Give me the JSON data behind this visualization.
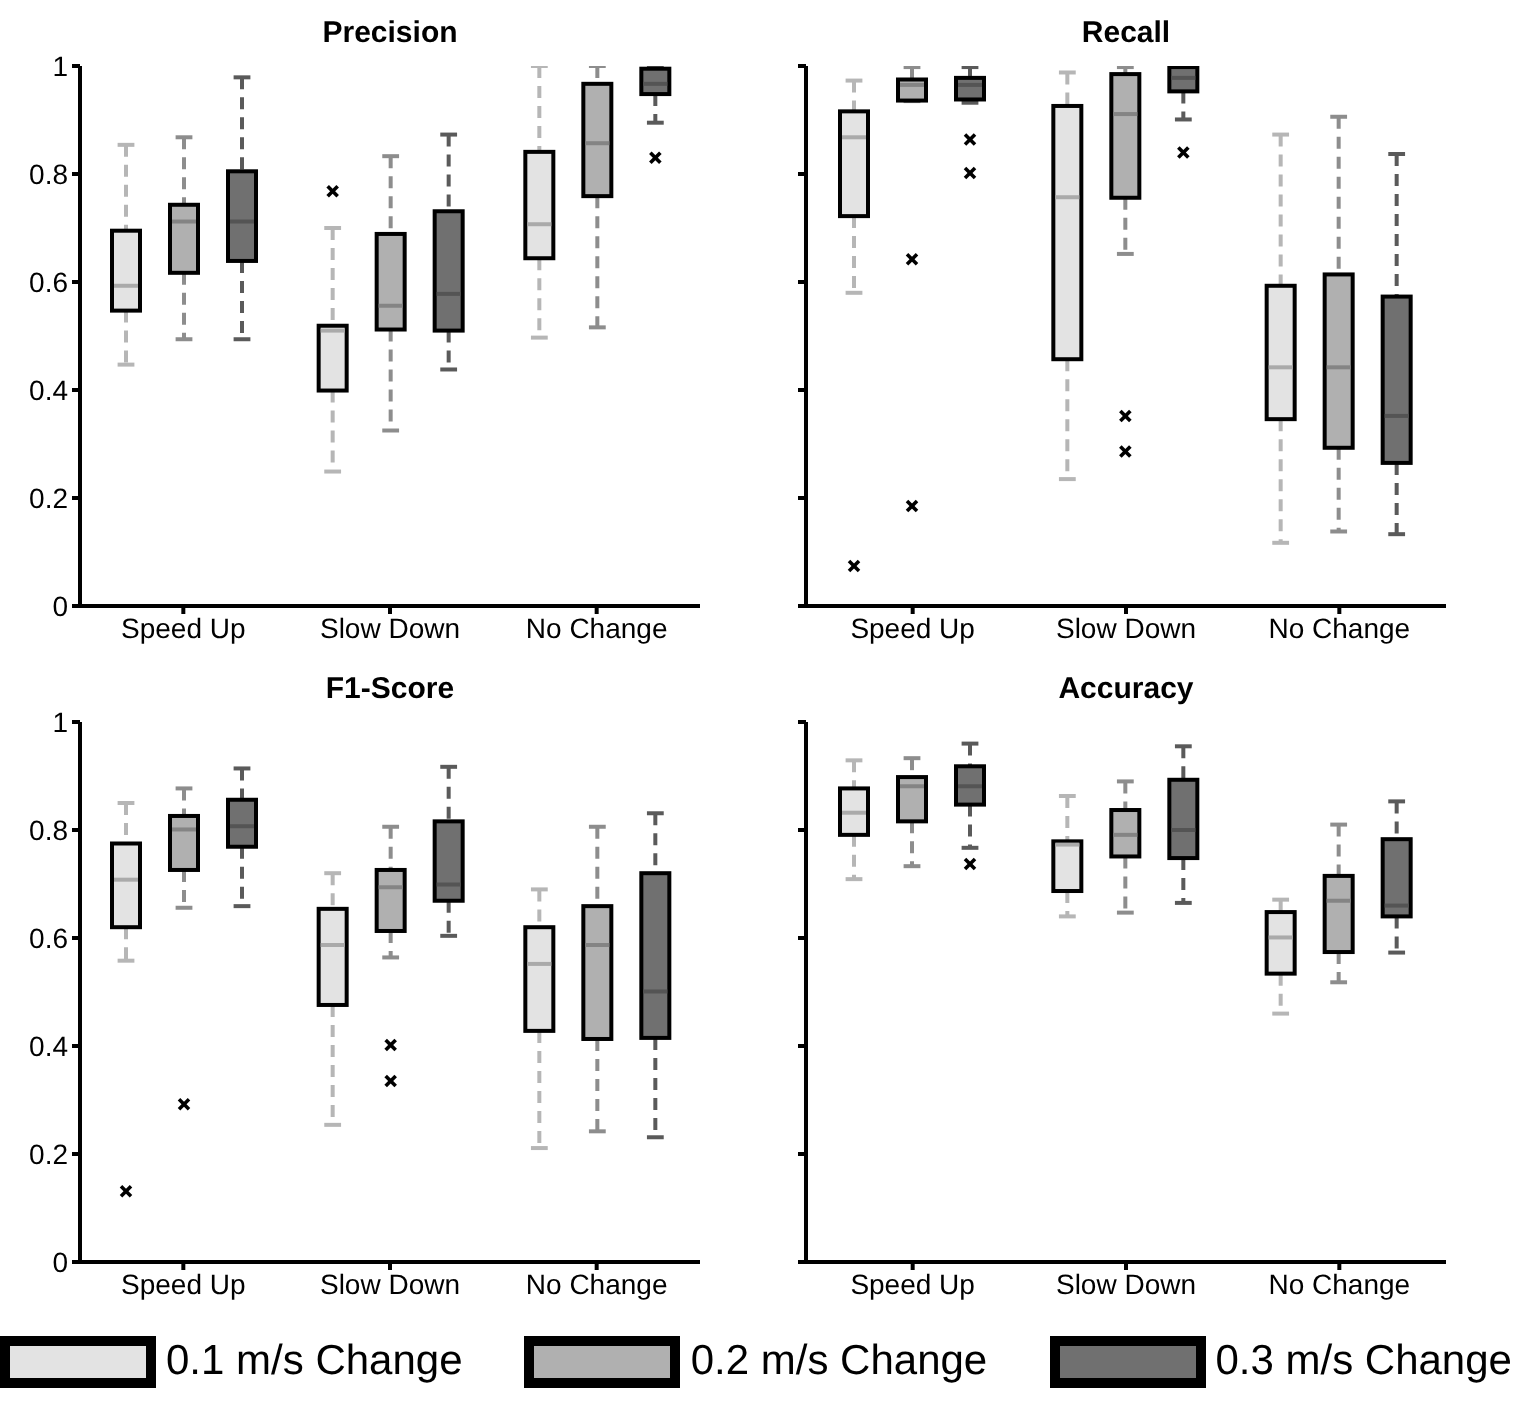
{
  "chart_data": [
    {
      "type": "box",
      "title": "Precision",
      "categories": [
        "Speed Up",
        "Slow Down",
        "No Change"
      ],
      "ylim": [
        0,
        1
      ],
      "yticks": [
        0,
        0.2,
        0.4,
        0.6,
        0.8,
        1
      ],
      "series": [
        {
          "color": "#e3e3e3",
          "boxes": [
            {
              "low": 0.447,
              "q1": 0.547,
              "median": 0.593,
              "q3": 0.695,
              "high": 0.854
            },
            {
              "low": 0.249,
              "q1": 0.399,
              "median": 0.51,
              "q3": 0.519,
              "high": 0.7,
              "outliers": [
                0.768
              ]
            },
            {
              "low": 0.497,
              "q1": 0.644,
              "median": 0.707,
              "q3": 0.841,
              "high": 1.0
            }
          ]
        },
        {
          "color": "#b0b0b0",
          "boxes": [
            {
              "low": 0.494,
              "q1": 0.617,
              "median": 0.712,
              "q3": 0.743,
              "high": 0.868
            },
            {
              "low": 0.325,
              "q1": 0.512,
              "median": 0.556,
              "q3": 0.689,
              "high": 0.833
            },
            {
              "low": 0.516,
              "q1": 0.759,
              "median": 0.857,
              "q3": 0.967,
              "high": 1.0
            }
          ]
        },
        {
          "color": "#707070",
          "boxes": [
            {
              "low": 0.494,
              "q1": 0.639,
              "median": 0.712,
              "q3": 0.805,
              "high": 0.979
            },
            {
              "low": 0.438,
              "q1": 0.51,
              "median": 0.578,
              "q3": 0.731,
              "high": 0.873
            },
            {
              "low": 0.895,
              "q1": 0.948,
              "median": 0.967,
              "q3": 0.995,
              "high": 1.0,
              "outliers": [
                0.83
              ]
            }
          ]
        }
      ]
    },
    {
      "type": "box",
      "title": "Recall",
      "categories": [
        "Speed Up",
        "Slow Down",
        "No Change"
      ],
      "ylim": [
        0,
        1
      ],
      "yticks": [
        0,
        0.2,
        0.4,
        0.6,
        0.8,
        1
      ],
      "tick_labels": "x",
      "series": [
        {
          "color": "#e3e3e3",
          "boxes": [
            {
              "low": 0.58,
              "q1": 0.722,
              "median": 0.868,
              "q3": 0.916,
              "high": 0.973,
              "outliers": [
                0.074
              ]
            },
            {
              "low": 0.235,
              "q1": 0.457,
              "median": 0.757,
              "q3": 0.926,
              "high": 0.988
            },
            {
              "low": 0.117,
              "q1": 0.346,
              "median": 0.442,
              "q3": 0.593,
              "high": 0.873
            }
          ]
        },
        {
          "color": "#b0b0b0",
          "boxes": [
            {
              "low": 0.935,
              "q1": 0.936,
              "median": 0.965,
              "q3": 0.975,
              "high": 0.998,
              "outliers": [
                0.642,
                0.185
              ]
            },
            {
              "low": 0.652,
              "q1": 0.756,
              "median": 0.911,
              "q3": 0.985,
              "high": 0.998,
              "outliers": [
                0.352,
                0.286
              ]
            },
            {
              "low": 0.138,
              "q1": 0.293,
              "median": 0.442,
              "q3": 0.614,
              "high": 0.906
            }
          ]
        },
        {
          "color": "#707070",
          "boxes": [
            {
              "low": 0.932,
              "q1": 0.938,
              "median": 0.965,
              "q3": 0.978,
              "high": 0.998,
              "outliers": [
                0.864,
                0.802
              ]
            },
            {
              "low": 0.901,
              "q1": 0.953,
              "median": 0.978,
              "q3": 0.998,
              "high": 1.0,
              "outliers": [
                0.84
              ]
            },
            {
              "low": 0.133,
              "q1": 0.265,
              "median": 0.352,
              "q3": 0.573,
              "high": 0.837
            }
          ]
        }
      ]
    },
    {
      "type": "box",
      "title": "F1-Score",
      "categories": [
        "Speed Up",
        "Slow Down",
        "No Change"
      ],
      "ylim": [
        0,
        1
      ],
      "yticks": [
        0,
        0.2,
        0.4,
        0.6,
        0.8,
        1
      ],
      "series": [
        {
          "color": "#e3e3e3",
          "boxes": [
            {
              "low": 0.558,
              "q1": 0.62,
              "median": 0.708,
              "q3": 0.775,
              "high": 0.85,
              "outliers": [
                0.131
              ]
            },
            {
              "low": 0.254,
              "q1": 0.476,
              "median": 0.587,
              "q3": 0.654,
              "high": 0.72
            },
            {
              "low": 0.211,
              "q1": 0.428,
              "median": 0.552,
              "q3": 0.62,
              "high": 0.69
            }
          ]
        },
        {
          "color": "#b0b0b0",
          "boxes": [
            {
              "low": 0.656,
              "q1": 0.726,
              "median": 0.801,
              "q3": 0.826,
              "high": 0.877,
              "outliers": [
                0.292
              ]
            },
            {
              "low": 0.564,
              "q1": 0.613,
              "median": 0.694,
              "q3": 0.726,
              "high": 0.806,
              "outliers": [
                0.402,
                0.335
              ]
            },
            {
              "low": 0.242,
              "q1": 0.413,
              "median": 0.587,
              "q3": 0.659,
              "high": 0.806
            }
          ]
        },
        {
          "color": "#707070",
          "boxes": [
            {
              "low": 0.659,
              "q1": 0.769,
              "median": 0.807,
              "q3": 0.856,
              "high": 0.914
            },
            {
              "low": 0.604,
              "q1": 0.669,
              "median": 0.699,
              "q3": 0.816,
              "high": 0.917
            },
            {
              "low": 0.231,
              "q1": 0.415,
              "median": 0.501,
              "q3": 0.72,
              "high": 0.831
            }
          ]
        }
      ]
    },
    {
      "type": "box",
      "title": "Accuracy",
      "categories": [
        "Speed Up",
        "Slow Down",
        "No Change"
      ],
      "ylim": [
        0,
        1
      ],
      "yticks": [
        0,
        0.2,
        0.4,
        0.6,
        0.8,
        1
      ],
      "tick_labels": "x",
      "legend": "bottom",
      "series": [
        {
          "name": "0.1 m/s Change",
          "color": "#e3e3e3",
          "boxes": [
            {
              "low": 0.709,
              "q1": 0.791,
              "median": 0.832,
              "q3": 0.877,
              "high": 0.929
            },
            {
              "low": 0.64,
              "q1": 0.687,
              "median": 0.773,
              "q3": 0.779,
              "high": 0.863
            },
            {
              "low": 0.46,
              "q1": 0.534,
              "median": 0.601,
              "q3": 0.648,
              "high": 0.671
            }
          ]
        },
        {
          "name": "0.2 m/s Change",
          "color": "#b0b0b0",
          "boxes": [
            {
              "low": 0.733,
              "q1": 0.816,
              "median": 0.881,
              "q3": 0.898,
              "high": 0.933
            },
            {
              "low": 0.647,
              "q1": 0.751,
              "median": 0.791,
              "q3": 0.837,
              "high": 0.89
            },
            {
              "low": 0.518,
              "q1": 0.574,
              "median": 0.669,
              "q3": 0.715,
              "high": 0.81
            }
          ]
        },
        {
          "name": "0.3 m/s Change",
          "color": "#707070",
          "boxes": [
            {
              "low": 0.767,
              "q1": 0.847,
              "median": 0.881,
              "q3": 0.918,
              "high": 0.96,
              "outliers": [
                0.737
              ]
            },
            {
              "low": 0.665,
              "q1": 0.748,
              "median": 0.8,
              "q3": 0.893,
              "high": 0.955
            },
            {
              "low": 0.573,
              "q1": 0.64,
              "median": 0.66,
              "q3": 0.783,
              "high": 0.853
            }
          ]
        }
      ]
    }
  ]
}
